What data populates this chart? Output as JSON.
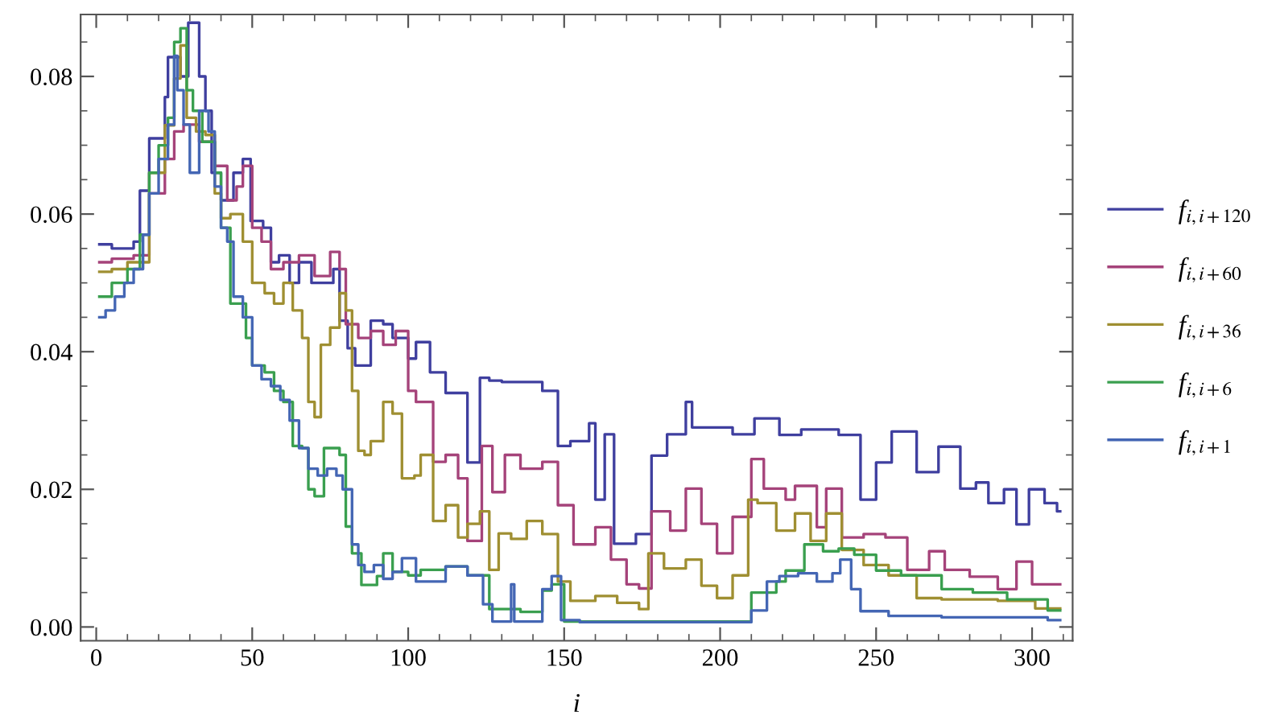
{
  "chart_data": {
    "type": "step",
    "xlabel": "i",
    "xlim": [
      -5,
      313
    ],
    "ylim": [
      -0.002,
      0.089
    ],
    "xticks": [
      0,
      50,
      100,
      150,
      200,
      250,
      300
    ],
    "yticks": [
      {
        "value": 0,
        "label": "0.00"
      },
      {
        "value": 0.02,
        "label": "0.02"
      },
      {
        "value": 0.04,
        "label": "0.04"
      },
      {
        "value": 0.06,
        "label": "0.06"
      },
      {
        "value": 0.08,
        "label": "0.08"
      }
    ],
    "grid": false,
    "legend": "right",
    "line_style": "solid",
    "marker": "none",
    "series": [
      {
        "name": "f$_{i,i+120}$",
        "color": "#3f3f9f",
        "x": [
          1,
          5,
          12,
          14,
          17,
          22,
          23,
          27,
          29.5,
          33,
          35,
          37,
          40,
          44,
          47,
          49.5,
          53.5,
          56,
          58.6,
          62,
          65,
          69,
          76,
          78,
          80.6,
          83,
          88,
          92,
          95,
          100,
          102.5,
          107,
          112,
          119,
          123,
          126,
          130,
          143,
          148,
          152,
          158,
          160,
          163,
          166,
          173,
          178,
          183,
          189,
          191,
          204,
          211,
          219,
          226,
          238,
          245,
          250,
          255,
          263,
          270,
          277,
          282,
          286,
          291,
          295,
          299,
          304,
          308,
          309
        ],
        "values": [
          0.0556,
          0.055,
          0.056,
          0.0634,
          0.071,
          0.077,
          0.0828,
          0.08,
          0.0878,
          0.08,
          0.075,
          0.066,
          0.062,
          0.066,
          0.068,
          0.059,
          0.058,
          0.053,
          0.054,
          0.05,
          0.053,
          0.05,
          0.052,
          0.0445,
          0.0405,
          0.038,
          0.0445,
          0.044,
          0.042,
          0.039,
          0.0414,
          0.037,
          0.034,
          0.0239,
          0.0362,
          0.0358,
          0.0356,
          0.0343,
          0.0263,
          0.027,
          0.0296,
          0.0185,
          0.028,
          0.0121,
          0.0135,
          0.0249,
          0.028,
          0.0327,
          0.029,
          0.028,
          0.0303,
          0.0279,
          0.0287,
          0.0279,
          0.0185,
          0.0239,
          0.0284,
          0.0225,
          0.0262,
          0.0201,
          0.021,
          0.018,
          0.02,
          0.0149,
          0.02,
          0.018,
          0.0168,
          0.0168
        ]
      },
      {
        "name": "f$_{i,i+60}$",
        "color": "#a5437a",
        "x": [
          1,
          5,
          12,
          17,
          22,
          25,
          28,
          33,
          38,
          42,
          45,
          47,
          50,
          53,
          56,
          60,
          65,
          70,
          75,
          78,
          80,
          84,
          88,
          92,
          96,
          100,
          102.5,
          108,
          112,
          116,
          119,
          123.6,
          127,
          131,
          136,
          143,
          148,
          153,
          160,
          165,
          170,
          174,
          178,
          184,
          189,
          194,
          199,
          204,
          210,
          214,
          221,
          224,
          231,
          234,
          239,
          246,
          253,
          260,
          267,
          272,
          280,
          289,
          295,
          300,
          305,
          309
        ],
        "values": [
          0.053,
          0.0535,
          0.054,
          0.063,
          0.068,
          0.072,
          0.073,
          0.0705,
          0.067,
          0.062,
          0.064,
          0.067,
          0.058,
          0.056,
          0.052,
          0.053,
          0.054,
          0.051,
          0.0545,
          0.052,
          0.044,
          0.042,
          0.043,
          0.041,
          0.043,
          0.0343,
          0.0327,
          0.024,
          0.025,
          0.0216,
          0.0125,
          0.0263,
          0.0196,
          0.025,
          0.023,
          0.024,
          0.0177,
          0.012,
          0.0145,
          0.0098,
          0.0062,
          0.0056,
          0.0168,
          0.014,
          0.0201,
          0.015,
          0.0107,
          0.016,
          0.0244,
          0.0201,
          0.0185,
          0.0205,
          0.0145,
          0.0201,
          0.013,
          0.0135,
          0.013,
          0.0083,
          0.011,
          0.0083,
          0.0073,
          0.0055,
          0.0095,
          0.0062,
          0.0062,
          0.0062
        ]
      },
      {
        "name": "f$_{i,i+36}$",
        "color": "#9f8f32",
        "x": [
          1,
          5,
          10,
          17,
          22,
          25,
          27,
          29,
          32,
          35,
          38,
          40,
          43,
          47,
          50,
          54,
          57,
          60,
          63,
          66,
          68,
          70,
          72,
          75,
          78,
          80,
          82,
          84,
          86,
          88,
          92,
          95,
          98,
          102,
          104,
          108,
          112,
          116,
          119,
          123,
          126,
          129,
          133,
          138,
          143,
          148,
          152,
          160,
          167,
          174,
          177,
          182,
          189,
          194,
          199,
          204,
          209,
          212,
          218,
          224,
          229,
          234,
          239,
          246,
          254,
          263,
          271,
          289,
          301,
          309
        ],
        "values": [
          0.0516,
          0.052,
          0.053,
          0.066,
          0.0729,
          0.0797,
          0.0845,
          0.074,
          0.072,
          0.0715,
          0.063,
          0.0594,
          0.06,
          0.056,
          0.05,
          0.0485,
          0.047,
          0.05,
          0.046,
          0.042,
          0.0327,
          0.0305,
          0.041,
          0.0435,
          0.0485,
          0.046,
          0.0343,
          0.0256,
          0.025,
          0.027,
          0.0327,
          0.031,
          0.0216,
          0.022,
          0.025,
          0.0154,
          0.0177,
          0.013,
          0.015,
          0.0168,
          0.0083,
          0.0136,
          0.0128,
          0.0154,
          0.0135,
          0.0066,
          0.0038,
          0.0045,
          0.0035,
          0.0026,
          0.0107,
          0.0085,
          0.0098,
          0.006,
          0.0042,
          0.0075,
          0.0185,
          0.018,
          0.014,
          0.0165,
          0.0125,
          0.0165,
          0.0112,
          0.009,
          0.0075,
          0.0042,
          0.004,
          0.0038,
          0.0027,
          0.0027
        ]
      },
      {
        "name": "f$_{i,i+6}$",
        "color": "#3a9f4f",
        "x": [
          1,
          5,
          10,
          14,
          17,
          20,
          23,
          25,
          27,
          29,
          31,
          34,
          38,
          40,
          43,
          48,
          50,
          54,
          57,
          60,
          63,
          66,
          68,
          70,
          73,
          78,
          80,
          82,
          85,
          90,
          92,
          95,
          100,
          104,
          112,
          119,
          126,
          136,
          143,
          146,
          150,
          207,
          210,
          218,
          221,
          227,
          233,
          238,
          243,
          250,
          258,
          271,
          281,
          292,
          305,
          309
        ],
        "values": [
          0.048,
          0.05,
          0.052,
          0.057,
          0.066,
          0.07,
          0.074,
          0.085,
          0.087,
          0.078,
          0.075,
          0.0705,
          0.066,
          0.058,
          0.047,
          0.042,
          0.038,
          0.037,
          0.0343,
          0.0327,
          0.0263,
          0.026,
          0.02,
          0.019,
          0.026,
          0.025,
          0.0146,
          0.0107,
          0.0061,
          0.0074,
          0.0107,
          0.008,
          0.0075,
          0.0083,
          0.0088,
          0.0075,
          0.0026,
          0.0022,
          0.0053,
          0.0062,
          0.0008,
          0.0008,
          0.005,
          0.0066,
          0.0082,
          0.012,
          0.011,
          0.0114,
          0.0105,
          0.0082,
          0.0075,
          0.0055,
          0.005,
          0.004,
          0.0024,
          0.0024
        ]
      },
      {
        "name": "f$_{i,i+1}$",
        "color": "#4466b4",
        "x": [
          1,
          3,
          6,
          9,
          12,
          15,
          17,
          20,
          23,
          25,
          26,
          28,
          30,
          33,
          36,
          38,
          40,
          42,
          44,
          47,
          50,
          53,
          56,
          59,
          62,
          65,
          68,
          71,
          74,
          77,
          79,
          82,
          84,
          86,
          89,
          92,
          95,
          98,
          102.5,
          109,
          112,
          119,
          124,
          127,
          133,
          134,
          143,
          146,
          149,
          155,
          209,
          210,
          215,
          219,
          225,
          231,
          236,
          238.5,
          242,
          245,
          254,
          271,
          305,
          309
        ],
        "values": [
          0.045,
          0.046,
          0.048,
          0.05,
          0.052,
          0.057,
          0.063,
          0.068,
          0.073,
          0.083,
          0.078,
          0.073,
          0.066,
          0.075,
          0.072,
          0.064,
          0.058,
          0.056,
          0.048,
          0.045,
          0.038,
          0.036,
          0.035,
          0.033,
          0.03,
          0.026,
          0.023,
          0.022,
          0.023,
          0.022,
          0.02,
          0.012,
          0.009,
          0.008,
          0.009,
          0.007,
          0.008,
          0.01,
          0.0066,
          0.0066,
          0.0088,
          0.0075,
          0.0033,
          0.0008,
          0.0062,
          0.0008,
          0.0055,
          0.0074,
          0.001,
          0.0007,
          0.0007,
          0.0024,
          0.0066,
          0.0074,
          0.0078,
          0.0066,
          0.0078,
          0.0098,
          0.0055,
          0.0023,
          0.0016,
          0.0014,
          0.001,
          0.001
        ]
      }
    ]
  }
}
